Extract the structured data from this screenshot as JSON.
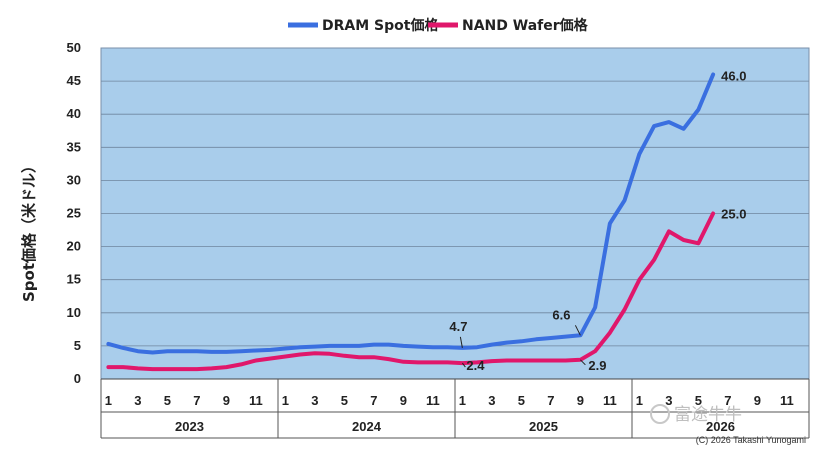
{
  "chart_data": {
    "type": "line",
    "title": "",
    "ylabel": "Spot価格（米ドル）",
    "ylim": [
      0,
      50
    ],
    "yticks": [
      0,
      5,
      10,
      15,
      20,
      25,
      30,
      35,
      40,
      45,
      50
    ],
    "x_months": [
      1,
      2,
      3,
      4,
      5,
      6,
      7,
      8,
      9,
      10,
      11,
      12,
      1,
      2,
      3,
      4,
      5,
      6,
      7,
      8,
      9,
      10,
      11,
      12,
      1,
      2,
      3,
      4,
      5,
      6,
      7,
      8,
      9,
      10,
      11,
      12,
      1,
      2,
      3,
      4,
      5,
      6,
      7,
      8,
      9,
      10,
      11,
      12
    ],
    "x_tick_labels": [
      "1",
      "",
      "3",
      "",
      "5",
      "",
      "7",
      "",
      "9",
      "",
      "11",
      "",
      "1",
      "",
      "3",
      "",
      "5",
      "",
      "7",
      "",
      "9",
      "",
      "11",
      "",
      "1",
      "",
      "3",
      "",
      "5",
      "",
      "7",
      "",
      "9",
      "",
      "11",
      "",
      "1",
      "",
      "3",
      "",
      "5",
      "",
      "7",
      "",
      "9",
      "",
      "11",
      ""
    ],
    "years": [
      "2023",
      "2024",
      "2025",
      "2026"
    ],
    "grid": true,
    "legend_position": "top",
    "series": [
      {
        "name": "DRAM Spot価格",
        "color": "#3a6fe0",
        "values": [
          5.3,
          4.7,
          4.2,
          4.0,
          4.2,
          4.2,
          4.2,
          4.1,
          4.1,
          4.2,
          4.3,
          4.4,
          4.6,
          4.8,
          4.9,
          5.0,
          5.0,
          5.0,
          5.2,
          5.2,
          5.0,
          4.9,
          4.8,
          4.8,
          4.7,
          4.8,
          5.2,
          5.5,
          5.7,
          6.0,
          6.2,
          6.4,
          6.6,
          10.8,
          23.5,
          27.0,
          34.0,
          38.2,
          38.8,
          37.8,
          40.7,
          46.0,
          null,
          null,
          null,
          null,
          null,
          null
        ]
      },
      {
        "name": "NAND Wafer価格",
        "color": "#e0176b",
        "values": [
          1.8,
          1.8,
          1.6,
          1.5,
          1.5,
          1.5,
          1.5,
          1.6,
          1.8,
          2.2,
          2.8,
          3.1,
          3.4,
          3.7,
          3.9,
          3.8,
          3.5,
          3.3,
          3.3,
          3.0,
          2.6,
          2.5,
          2.5,
          2.5,
          2.4,
          2.5,
          2.7,
          2.8,
          2.8,
          2.8,
          2.8,
          2.8,
          2.9,
          4.2,
          7.0,
          10.5,
          15.0,
          18.0,
          22.3,
          21.0,
          20.5,
          25.0,
          null,
          null,
          null,
          null,
          null,
          null
        ]
      }
    ],
    "annotations": [
      {
        "series": 0,
        "index": 24,
        "text": "4.7"
      },
      {
        "series": 1,
        "index": 24,
        "text": "2.4"
      },
      {
        "series": 0,
        "index": 32,
        "text": "6.6"
      },
      {
        "series": 1,
        "index": 32,
        "text": "2.9"
      },
      {
        "series": 0,
        "index": 41,
        "text": "46.0"
      },
      {
        "series": 1,
        "index": 41,
        "text": "25.0"
      }
    ]
  },
  "credit": "(C) 2026 Takashi Yunogami",
  "watermark": "富途牛牛"
}
